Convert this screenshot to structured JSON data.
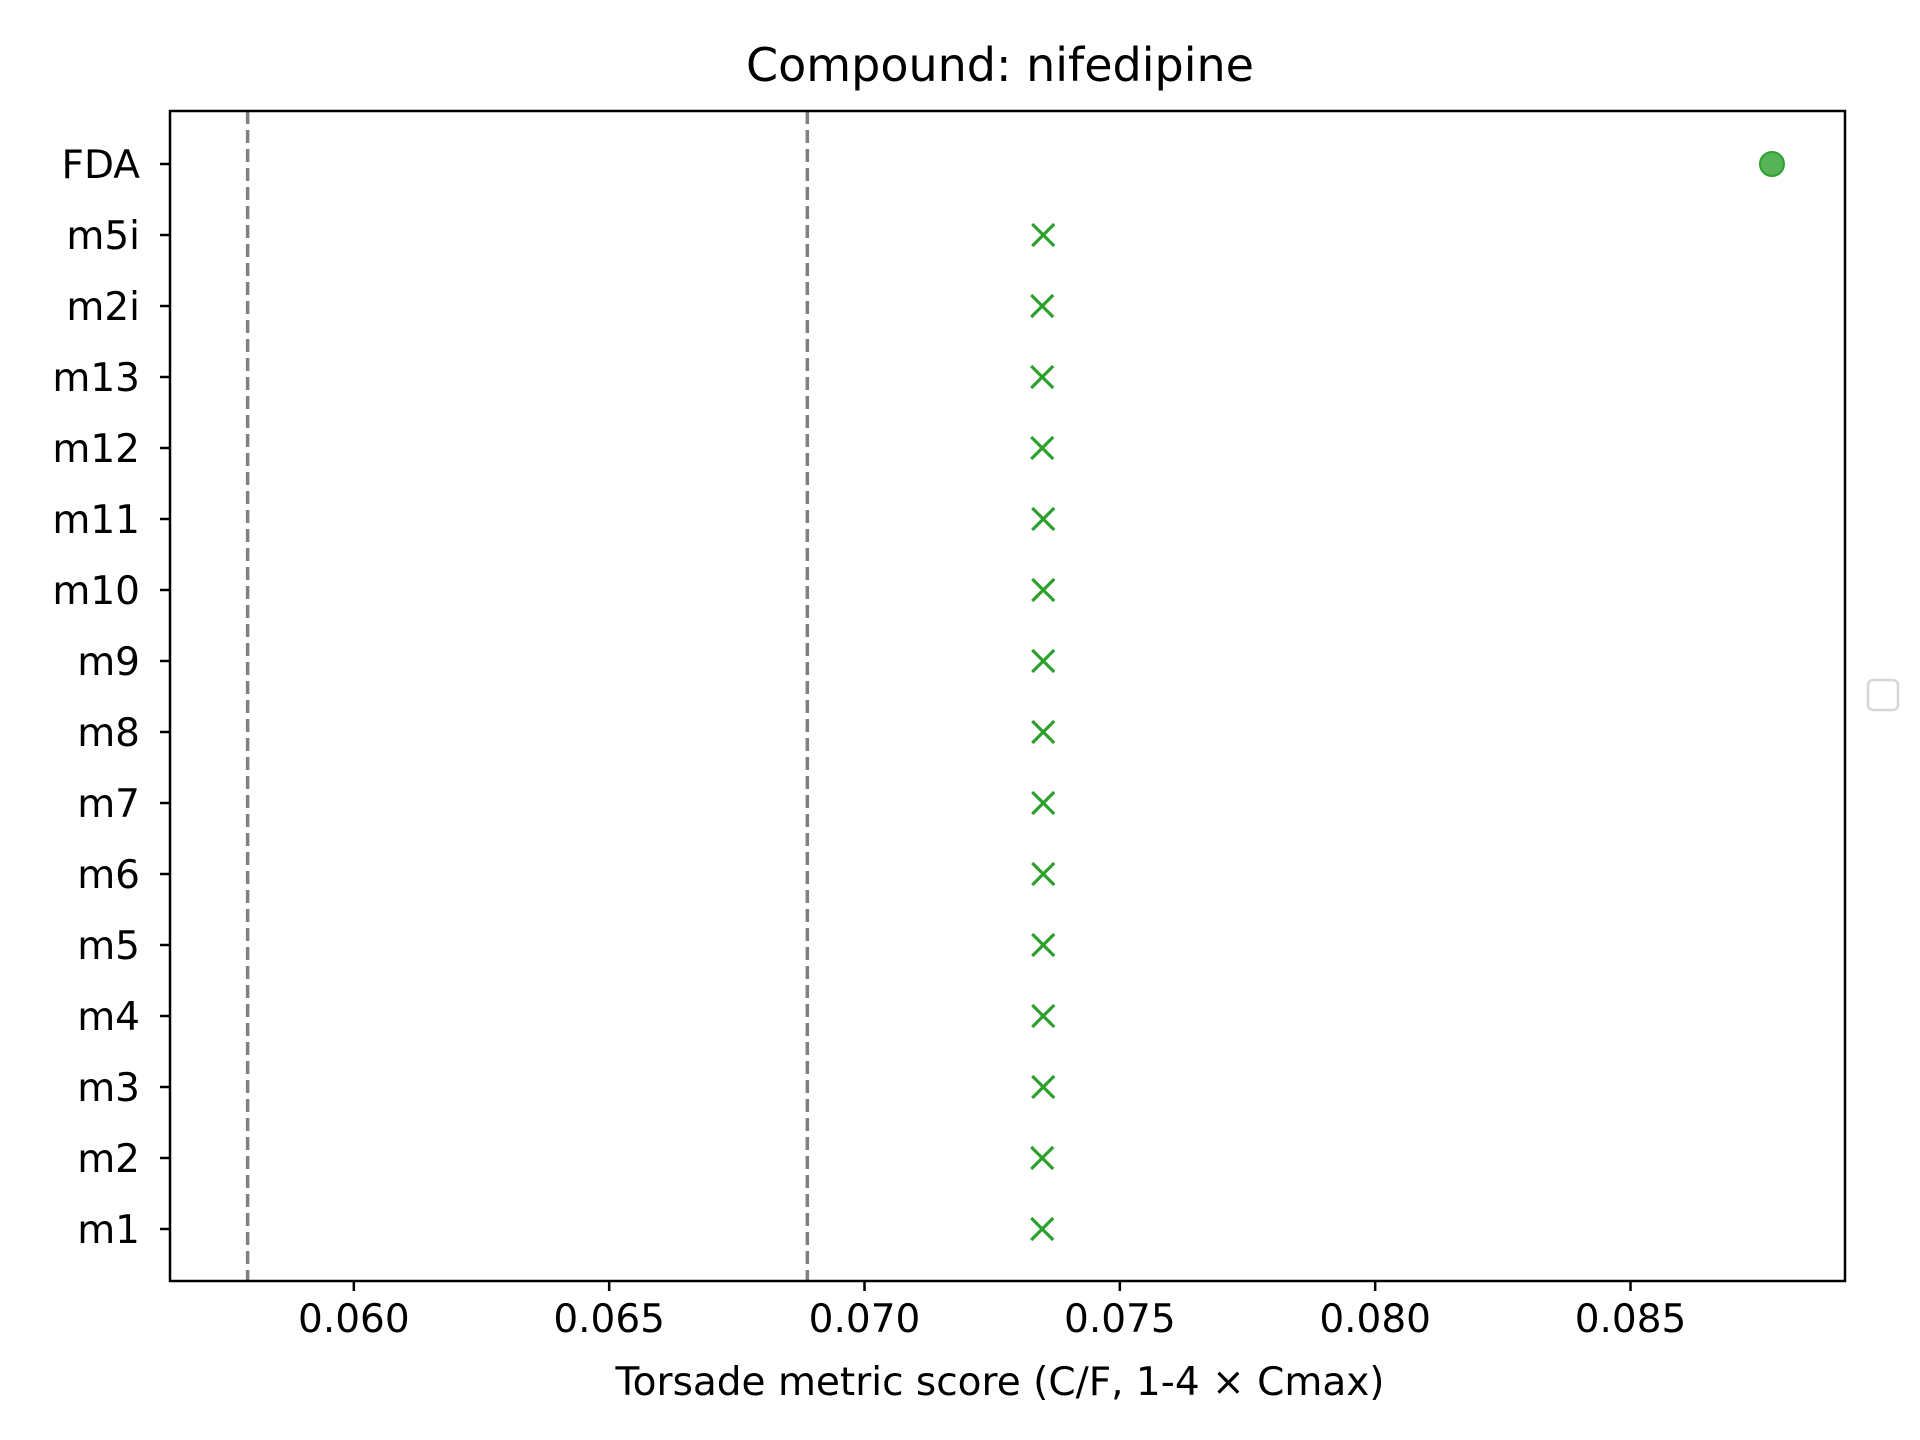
{
  "chart_data": {
    "type": "scatter",
    "title": "Compound: nifedipine",
    "xlabel": "Torsade metric score (C/F, 1-4 × Cmax)",
    "ylabel": "",
    "xlim": [
      0.0564,
      0.0892
    ],
    "x_ticks": [
      0.06,
      0.065,
      0.07,
      0.075,
      0.08,
      0.085
    ],
    "x_tick_labels": [
      "0.060",
      "0.065",
      "0.070",
      "0.075",
      "0.080",
      "0.085"
    ],
    "categories": [
      "m1",
      "m2",
      "m3",
      "m4",
      "m5",
      "m6",
      "m7",
      "m8",
      "m9",
      "m10",
      "m11",
      "m12",
      "m13",
      "m2i",
      "m5i",
      "FDA"
    ],
    "model_points": [
      {
        "category": "m1",
        "x": 0.07348
      },
      {
        "category": "m2",
        "x": 0.07348
      },
      {
        "category": "m3",
        "x": 0.0735
      },
      {
        "category": "m4",
        "x": 0.0735
      },
      {
        "category": "m5",
        "x": 0.0735
      },
      {
        "category": "m6",
        "x": 0.0735
      },
      {
        "category": "m7",
        "x": 0.0735
      },
      {
        "category": "m8",
        "x": 0.0735
      },
      {
        "category": "m9",
        "x": 0.0735
      },
      {
        "category": "m10",
        "x": 0.0735
      },
      {
        "category": "m11",
        "x": 0.0735
      },
      {
        "category": "m12",
        "x": 0.07348
      },
      {
        "category": "m13",
        "x": 0.07348
      },
      {
        "category": "m2i",
        "x": 0.07348
      },
      {
        "category": "m5i",
        "x": 0.0735
      }
    ],
    "reference_points": [
      {
        "category": "FDA",
        "x": 0.08777
      }
    ],
    "threshold_lines": [
      0.05792,
      0.06888
    ],
    "colors": {
      "model_marker": "#2ca02c",
      "reference_marker": "#2ca02c",
      "threshold": "#808080",
      "axes": "#000000"
    },
    "grid": false,
    "legend": {
      "position": "center-right",
      "entries": []
    }
  }
}
